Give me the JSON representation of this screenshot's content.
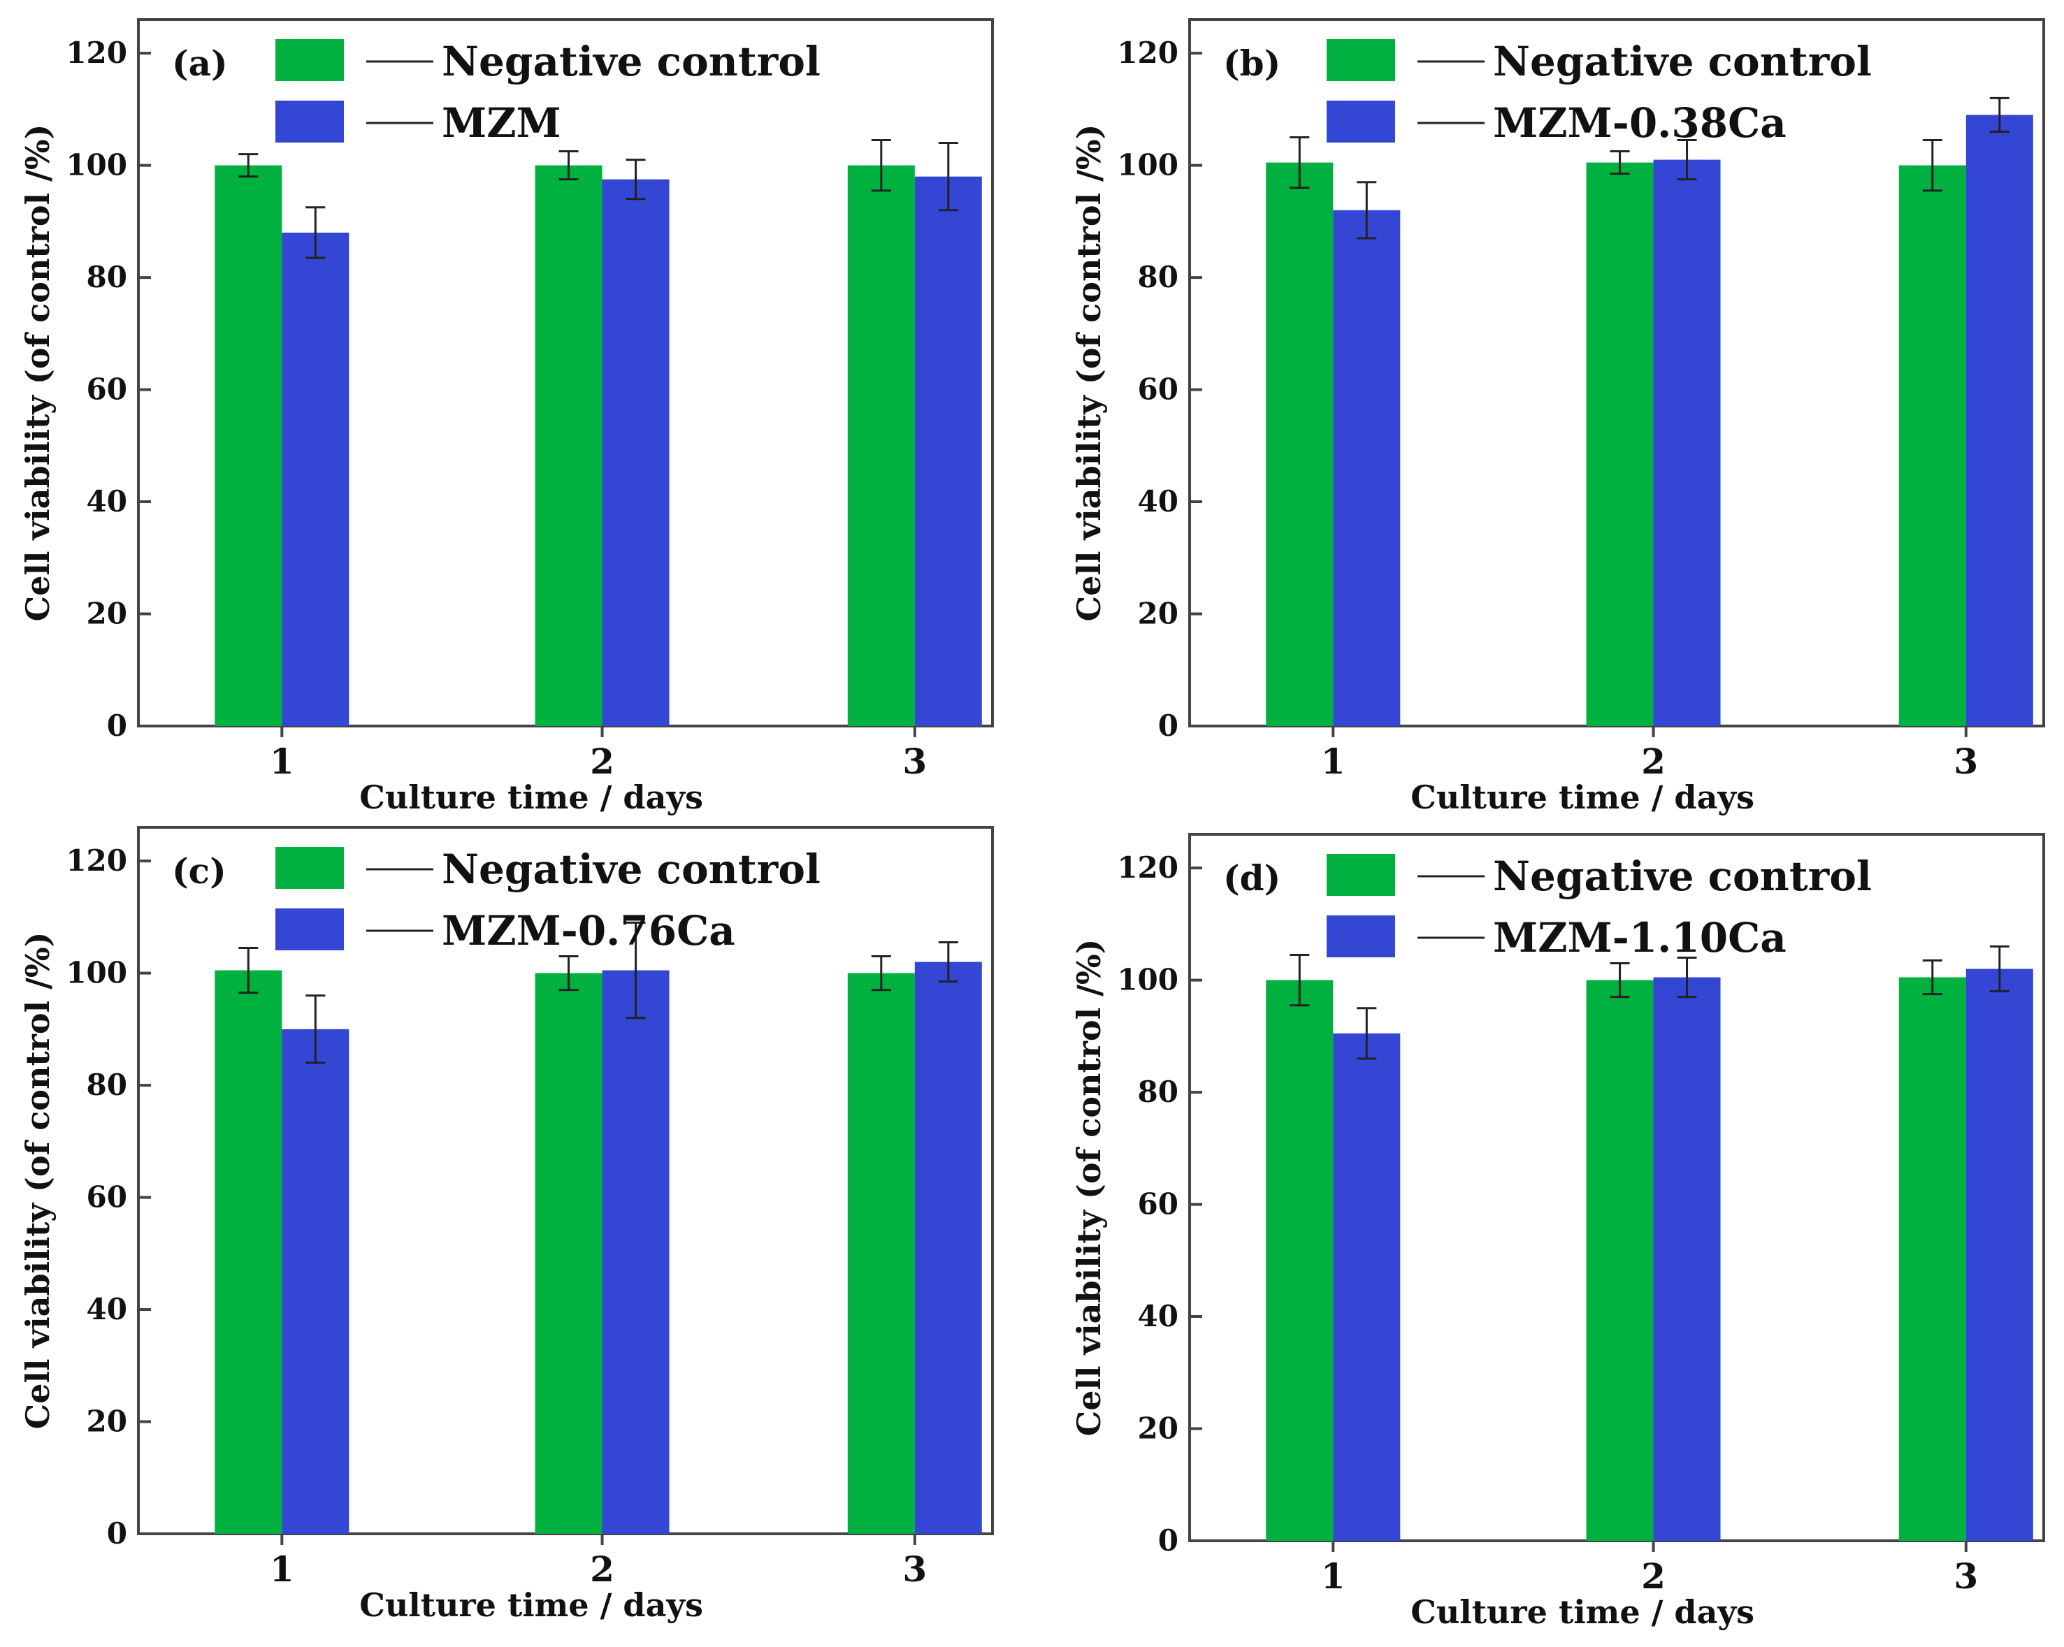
{
  "colors": {
    "control": "#00b140",
    "sample": "#3446d4",
    "axis": "#444444",
    "errorbar": "#222222"
  },
  "chart_data": [
    {
      "type": "bar",
      "panel_label": "(a)",
      "categories": [
        "1",
        "2",
        "3"
      ],
      "series": [
        {
          "name": "Negative control",
          "values": [
            100,
            100,
            100
          ],
          "errors": [
            2,
            2.5,
            4.5
          ]
        },
        {
          "name": "MZM",
          "values": [
            88,
            97.5,
            98
          ],
          "errors": [
            4.5,
            3.5,
            6
          ]
        }
      ],
      "xlabel": "Culture time / days",
      "ylabel": "Cell viability (of control /%)",
      "yticks": [
        "0",
        "20",
        "40",
        "60",
        "80",
        "100",
        "120"
      ],
      "ylim": [
        0,
        126
      ],
      "legend_position": "top"
    },
    {
      "type": "bar",
      "panel_label": "(b)",
      "categories": [
        "1",
        "2",
        "3"
      ],
      "series": [
        {
          "name": "Negative control",
          "values": [
            100.5,
            100.5,
            100
          ],
          "errors": [
            4.5,
            2,
            4.5
          ]
        },
        {
          "name": "MZM-0.38Ca",
          "values": [
            92,
            101,
            109
          ],
          "errors": [
            5,
            3.5,
            3
          ]
        }
      ],
      "xlabel": "Culture time / days",
      "ylabel": "Cell viability (of control /%)",
      "yticks": [
        "0",
        "20",
        "40",
        "60",
        "80",
        "100",
        "120"
      ],
      "ylim": [
        0,
        126
      ],
      "legend_position": "top"
    },
    {
      "type": "bar",
      "panel_label": "(c)",
      "categories": [
        "1",
        "2",
        "3"
      ],
      "series": [
        {
          "name": "Negative control",
          "values": [
            100.5,
            100,
            100
          ],
          "errors": [
            4,
            3,
            3
          ]
        },
        {
          "name": "MZM-0.76Ca",
          "values": [
            90,
            100.5,
            102
          ],
          "errors": [
            6,
            8.5,
            3.5
          ]
        }
      ],
      "xlabel": "Culture time / days",
      "ylabel": "Cell viability (of control /%)",
      "yticks": [
        "0",
        "20",
        "40",
        "60",
        "80",
        "100",
        "120"
      ],
      "ylim": [
        0,
        126
      ],
      "legend_position": "top"
    },
    {
      "type": "bar",
      "panel_label": "(d)",
      "categories": [
        "1",
        "2",
        "3"
      ],
      "series": [
        {
          "name": "Negative control",
          "values": [
            100,
            100,
            100.5
          ],
          "errors": [
            4.5,
            3,
            3
          ]
        },
        {
          "name": "MZM-1.10Ca",
          "values": [
            90.5,
            100.5,
            102
          ],
          "errors": [
            4.5,
            3.5,
            4
          ]
        }
      ],
      "xlabel": "Culture time / days",
      "ylabel": "Cell viability (of control /%)",
      "yticks": [
        "0",
        "20",
        "40",
        "60",
        "80",
        "100",
        "120"
      ],
      "ylim": [
        0,
        126
      ],
      "legend_position": "top"
    }
  ]
}
